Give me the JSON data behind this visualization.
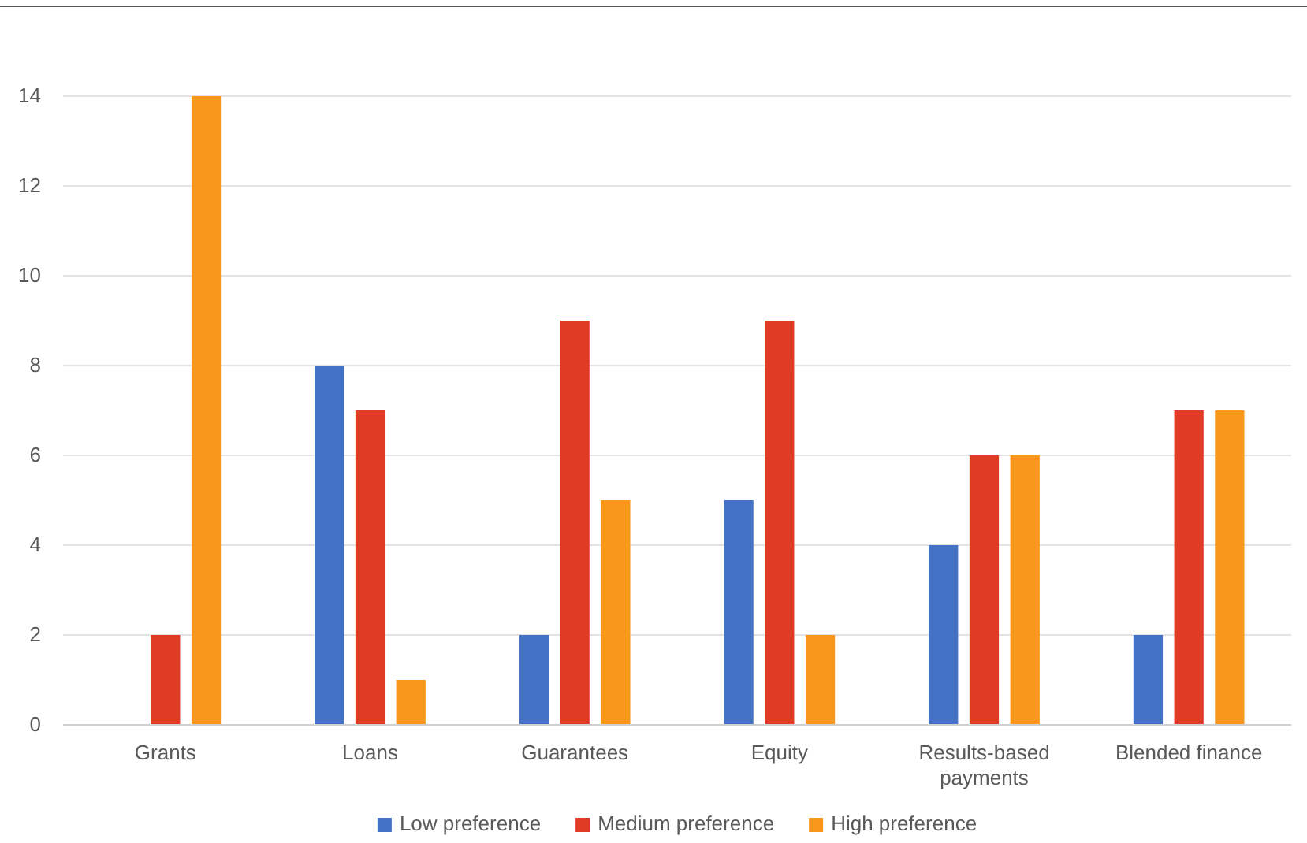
{
  "chart_data": {
    "type": "bar",
    "categories": [
      "Grants",
      "Loans",
      "Guarantees",
      "Equity",
      "Results-based payments",
      "Blended finance"
    ],
    "series": [
      {
        "name": "Low preference",
        "color": "#4472c4",
        "values": [
          0,
          8,
          2,
          5,
          4,
          2
        ]
      },
      {
        "name": "Medium preference",
        "color": "#e03b24",
        "values": [
          2,
          7,
          9,
          9,
          6,
          7
        ]
      },
      {
        "name": "High preference",
        "color": "#f7981d",
        "values": [
          14,
          1,
          5,
          2,
          6,
          7
        ]
      }
    ],
    "ylim": [
      0,
      14
    ],
    "yticks": [
      0,
      2,
      4,
      6,
      8,
      10,
      12,
      14
    ],
    "grid": "y",
    "legend": "bottom"
  }
}
